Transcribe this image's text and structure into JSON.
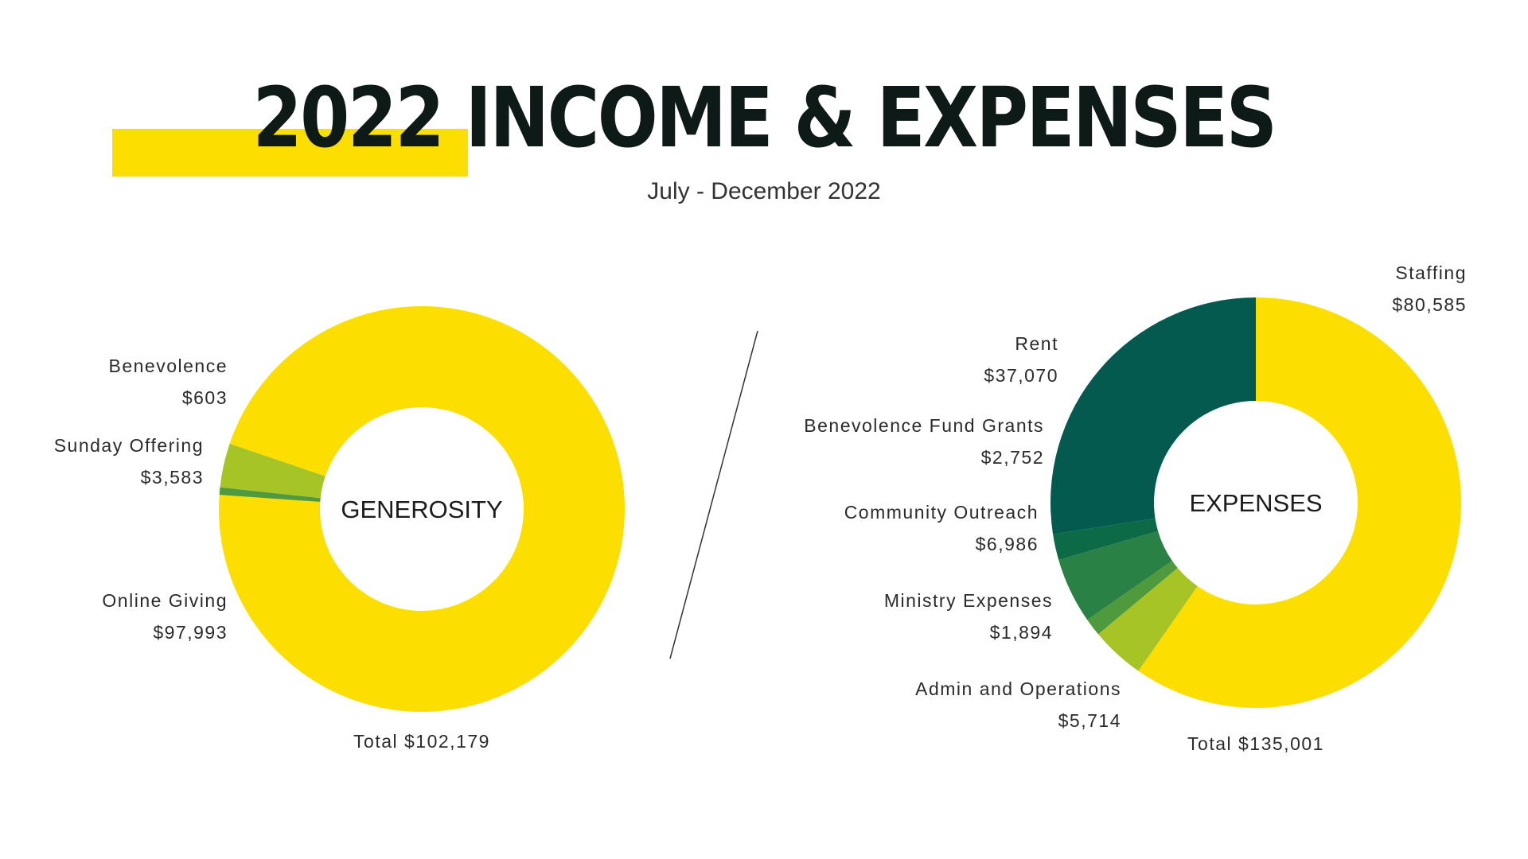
{
  "header": {
    "title": "2022 INCOME & EXPENSES",
    "subtitle": "July - December 2022"
  },
  "colors": {
    "title_text": "#0d1a17",
    "accent_bar": "#fcdf00"
  },
  "chart_data": [
    {
      "type": "pie",
      "center_label": "GENEROSITY",
      "total_label": "Total $102,179",
      "slices": [
        {
          "label": "Online Giving",
          "value_label": "$97,993",
          "value": 97993,
          "color": "#fcdf00"
        },
        {
          "label": "Benevolence",
          "value_label": "$603",
          "value": 603,
          "color": "#4e9a3c"
        },
        {
          "label": "Sunday Offering",
          "value_label": "$3,583",
          "value": 3583,
          "color": "#a7c427"
        }
      ]
    },
    {
      "type": "pie",
      "center_label": "EXPENSES",
      "total_label": "Total $135,001",
      "slices": [
        {
          "label": "Staffing",
          "value_label": "$80,585",
          "value": 80585,
          "color": "#fcdf00"
        },
        {
          "label": "Admin and Operations",
          "value_label": "$5,714",
          "value": 5714,
          "color": "#a7c427"
        },
        {
          "label": "Ministry Expenses",
          "value_label": "$1,894",
          "value": 1894,
          "color": "#4e9a3c"
        },
        {
          "label": "Community Outreach",
          "value_label": "$6,986",
          "value": 6986,
          "color": "#2a8146"
        },
        {
          "label": "Benevolence Fund Grants",
          "value_label": "$2,752",
          "value": 2752,
          "color": "#0c6b46"
        },
        {
          "label": "Rent",
          "value_label": "$37,070",
          "value": 37070,
          "color": "#045a4f"
        }
      ]
    }
  ]
}
